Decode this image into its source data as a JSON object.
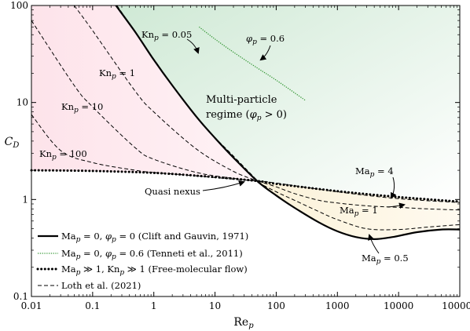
{
  "chart_data": {
    "type": "line",
    "x_scale": "log",
    "y_scale": "log",
    "xlim": [
      0.01,
      100000
    ],
    "ylim": [
      0.1,
      100
    ],
    "xlabel": "Re_p",
    "ylabel": "C_D",
    "x_ticks": [
      "0.01",
      "0.1",
      "1",
      "10",
      "100",
      "1000",
      "10000",
      "100000"
    ],
    "y_ticks": [
      "0.1",
      "1",
      "10",
      "100"
    ],
    "grid": false,
    "legend_position": "bottom-left",
    "series": [
      {
        "name": "Ma_p = 0, φ_p = 0 (Clift and Gauvin, 1971)",
        "style": "solid-thick",
        "color": "#000000",
        "x": [
          0.24,
          0.5,
          1,
          2,
          5,
          10,
          20,
          50,
          100,
          200,
          500,
          1000,
          2000,
          4000,
          8000,
          20000,
          50000,
          100000
        ],
        "y": [
          100,
          53,
          27.5,
          15,
          7.1,
          4.3,
          2.7,
          1.53,
          1.1,
          0.82,
          0.58,
          0.47,
          0.41,
          0.39,
          0.41,
          0.46,
          0.49,
          0.49
        ]
      },
      {
        "name": "Ma_p = 0, φ_p = 0.6 (Tenneti et al., 2011)",
        "style": "dotted",
        "color": "#3a9a3a",
        "x": [
          5.5,
          10,
          20,
          50,
          100,
          300
        ],
        "y": [
          60,
          45,
          33,
          22.5,
          17,
          10.5
        ]
      },
      {
        "name": "Ma_p ≫ 1, Kn_p ≫ 1 (Free-molecular flow)",
        "style": "dotted-thick",
        "color": "#000000",
        "x": [
          0.01,
          0.1,
          1,
          10,
          50,
          100,
          1000,
          10000,
          100000
        ],
        "y": [
          2.0,
          1.97,
          1.88,
          1.7,
          1.55,
          1.45,
          1.22,
          1.06,
          0.95
        ]
      },
      {
        "name": "Loth et al. (2021) — Kn_p = 0.05",
        "style": "dashed",
        "color": "#000000",
        "x": [
          0.25,
          1,
          5,
          20,
          50
        ],
        "y": [
          100,
          28,
          7,
          2.8,
          1.55
        ]
      },
      {
        "name": "Loth et al. (2021) — Kn_p = 1",
        "style": "dashed",
        "color": "#000000",
        "x": [
          0.05,
          0.1,
          0.5,
          1,
          5,
          20,
          50
        ],
        "y": [
          100,
          55,
          13,
          8,
          3.3,
          1.95,
          1.55
        ]
      },
      {
        "name": "Loth et al. (2021) — Kn_p = 10",
        "style": "dashed",
        "color": "#000000",
        "x": [
          0.01,
          0.05,
          0.1,
          0.5,
          1,
          5,
          20,
          50
        ],
        "y": [
          70,
          15,
          9,
          3.4,
          2.6,
          1.9,
          1.65,
          1.55
        ]
      },
      {
        "name": "Loth et al. (2021) — Kn_p = 100",
        "style": "dashed",
        "color": "#000000",
        "x": [
          0.01,
          0.03,
          0.1,
          0.5,
          1,
          5,
          20,
          50
        ],
        "y": [
          7.5,
          3.2,
          2.4,
          2.0,
          1.9,
          1.75,
          1.62,
          1.55
        ]
      },
      {
        "name": "Loth et al. (2021) — Ma_p = 4",
        "style": "dashed",
        "color": "#000000",
        "x": [
          50,
          100,
          1000,
          10000,
          100000
        ],
        "y": [
          1.55,
          1.48,
          1.2,
          1.02,
          0.93
        ]
      },
      {
        "name": "Loth et al. (2021) — Ma_p = 1",
        "style": "dashed",
        "color": "#000000",
        "x": [
          50,
          100,
          200,
          500,
          1000,
          3000,
          10000,
          30000,
          100000
        ],
        "y": [
          1.55,
          1.35,
          1.15,
          0.98,
          0.92,
          0.86,
          0.83,
          0.8,
          0.78
        ]
      },
      {
        "name": "Loth et al. (2021) — Ma_p = 0.5",
        "style": "dashed",
        "color": "#000000",
        "x": [
          50,
          100,
          200,
          500,
          1000,
          3000,
          10000,
          30000,
          100000
        ],
        "y": [
          1.5,
          1.2,
          0.98,
          0.75,
          0.62,
          0.5,
          0.49,
          0.52,
          0.55
        ]
      }
    ],
    "annotations": {
      "kn005": "Kn_p = 0.05",
      "kn1": "Kn_p = 1",
      "kn10": "Kn_p = 10",
      "kn100": "Kn_p = 100",
      "phi06": "φ_p = 0.6",
      "multi1": "Multi-particle",
      "multi2": "regime (φ_p > 0)",
      "quasi": "Quasi nexus",
      "ma4": "Ma_p = 4",
      "ma1": "Ma_p = 1",
      "ma05": "Ma_p = 0.5"
    },
    "legend": [
      "Ma_p = 0, φ_p = 0 (Clift and Gauvin, 1971)",
      "Ma_p = 0, φ_p = 0.6 (Tenneti et al., 2011)",
      "Ma_p ≫ 1, Kn_p ≫ 1 (Free-molecular flow)",
      "Loth et al. (2021)"
    ],
    "colors": {
      "rarefied_region": "#fde4ec",
      "multiparticle_region": "#d8eedd",
      "compressible_region": "#fcf4dc",
      "tenneti": "#3a9a3a"
    }
  }
}
